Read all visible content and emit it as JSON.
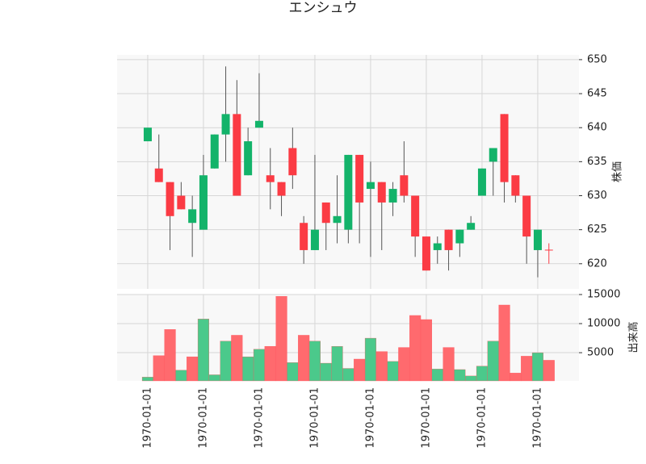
{
  "chart_data": {
    "type": "candlestick",
    "title": "エンシュウ",
    "categories": [
      "1970-01-01",
      null,
      null,
      null,
      null,
      "1970-01-01",
      null,
      null,
      null,
      null,
      "1970-01-01",
      null,
      null,
      null,
      null,
      "1970-01-01",
      null,
      null,
      null,
      null,
      "1970-01-01",
      null,
      null,
      null,
      null,
      "1970-01-01",
      null,
      null,
      null,
      null,
      "1970-01-01",
      null,
      null,
      null,
      null,
      "1970-01-01",
      null
    ],
    "open": [
      638,
      634,
      632,
      630,
      626,
      625,
      634,
      639,
      642,
      633,
      640,
      633,
      632,
      637,
      626,
      622,
      629,
      626,
      625,
      636,
      631,
      632,
      629,
      633,
      630,
      624,
      622,
      625,
      623,
      625,
      630,
      635,
      642,
      633,
      630,
      622,
      622
    ],
    "high": [
      640,
      639,
      632,
      632,
      630,
      636,
      639,
      649,
      647,
      640,
      648,
      637,
      632,
      640,
      627,
      636,
      629,
      633,
      636,
      636,
      635,
      632,
      632,
      638,
      630,
      624,
      624,
      625,
      625,
      627,
      634,
      637,
      642,
      633,
      630,
      625,
      623
    ],
    "low": [
      638,
      632,
      622,
      628,
      621,
      625,
      634,
      635,
      630,
      633,
      640,
      628,
      627,
      631,
      620,
      622,
      622,
      623,
      623,
      623,
      621,
      622,
      627,
      629,
      621,
      619,
      620,
      619,
      621,
      625,
      630,
      630,
      629,
      629,
      620,
      618,
      620
    ],
    "close": [
      640,
      632,
      627,
      628,
      628,
      633,
      639,
      642,
      630,
      638,
      641,
      632,
      630,
      633,
      622,
      625,
      626,
      627,
      636,
      629,
      632,
      629,
      631,
      630,
      624,
      619,
      623,
      622,
      625,
      626,
      634,
      637,
      632,
      630,
      624,
      625,
      622
    ],
    "up_color": "#13b36a",
    "down_color": "#fb3b44",
    "ylabel": "株価",
    "ylim": [
      616.3,
      650.7
    ],
    "yticks": [
      620,
      625,
      630,
      635,
      640,
      645,
      650
    ],
    "grid": true,
    "volume": {
      "label": "出来高",
      "values": [
        800,
        4500,
        9000,
        2000,
        4300,
        10800,
        1200,
        7000,
        8000,
        4300,
        5600,
        6100,
        14700,
        3300,
        8000,
        7000,
        3200,
        6100,
        2300,
        3900,
        7500,
        5200,
        3500,
        5900,
        11400,
        10700,
        2200,
        5900,
        2100,
        1000,
        2700,
        7000,
        13200,
        1500,
        4400,
        5000,
        3700
      ],
      "colors": [
        "#4bc98b",
        "#ff6a6e",
        "#ff6a6e",
        "#4bc98b",
        "#ff6a6e",
        "#4bc98b",
        "#4bc98b",
        "#4bc98b",
        "#ff6a6e",
        "#4bc98b",
        "#4bc98b",
        "#ff6a6e",
        "#ff6a6e",
        "#4bc98b",
        "#ff6a6e",
        "#4bc98b",
        "#4bc98b",
        "#4bc98b",
        "#4bc98b",
        "#ff6a6e",
        "#4bc98b",
        "#ff6a6e",
        "#4bc98b",
        "#ff6a6e",
        "#ff6a6e",
        "#ff6a6e",
        "#4bc98b",
        "#ff6a6e",
        "#4bc98b",
        "#4bc98b",
        "#4bc98b",
        "#4bc98b",
        "#ff6a6e",
        "#ff6a6e",
        "#ff6a6e",
        "#4bc98b",
        "#ff6a6e"
      ],
      "ylim": [
        150,
        15000
      ],
      "yticks": [
        5000,
        10000,
        15000
      ]
    }
  }
}
